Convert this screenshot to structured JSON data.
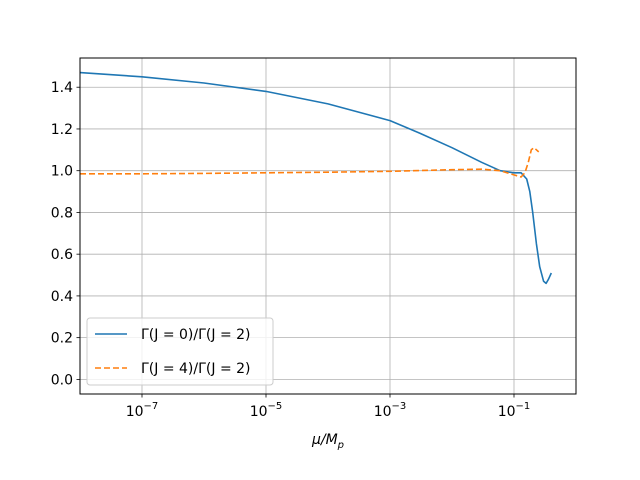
{
  "chart_data": {
    "type": "line",
    "title": "",
    "xlabel": "μ/M",
    "xlabel_sub": "p",
    "ylabel": "",
    "xscale": "log",
    "xlim": [
      1e-08,
      1.0
    ],
    "ylim": [
      -0.07,
      1.54
    ],
    "grid": true,
    "legend_position": "lower-left",
    "x_ticks": [
      {
        "value": 1e-07,
        "base": "10",
        "exp": "−7"
      },
      {
        "value": 1e-05,
        "base": "10",
        "exp": "−5"
      },
      {
        "value": 0.001,
        "base": "10",
        "exp": "−3"
      },
      {
        "value": 0.1,
        "base": "10",
        "exp": "−1"
      }
    ],
    "y_ticks": [
      {
        "value": 0.0,
        "label": "0.0"
      },
      {
        "value": 0.2,
        "label": "0.2"
      },
      {
        "value": 0.4,
        "label": "0.4"
      },
      {
        "value": 0.6,
        "label": "0.6"
      },
      {
        "value": 0.8,
        "label": "0.8"
      },
      {
        "value": 1.0,
        "label": "1.0"
      },
      {
        "value": 1.2,
        "label": "1.2"
      },
      {
        "value": 1.4,
        "label": "1.4"
      }
    ],
    "series": [
      {
        "name": "Γ(J = 0)/Γ(J = 2)",
        "color": "#1f77b4",
        "style": "solid",
        "x": [
          1e-08,
          1e-07,
          1e-06,
          1e-05,
          0.0001,
          0.001,
          0.003,
          0.01,
          0.03,
          0.06,
          0.1,
          0.13,
          0.16,
          0.18,
          0.2,
          0.23,
          0.26,
          0.3,
          0.33,
          0.36,
          0.4
        ],
        "y": [
          1.47,
          1.45,
          1.42,
          1.38,
          1.32,
          1.24,
          1.18,
          1.11,
          1.04,
          1.0,
          0.99,
          0.99,
          0.96,
          0.9,
          0.8,
          0.65,
          0.54,
          0.47,
          0.46,
          0.48,
          0.51
        ]
      },
      {
        "name": "Γ(J = 4)/Γ(J = 2)",
        "color": "#ff7f0e",
        "style": "dashed",
        "x": [
          1e-08,
          1e-07,
          1e-06,
          1e-05,
          0.0001,
          0.001,
          0.01,
          0.03,
          0.06,
          0.1,
          0.13,
          0.15,
          0.17,
          0.19,
          0.21,
          0.23,
          0.25
        ],
        "y": [
          0.985,
          0.985,
          0.987,
          0.99,
          0.993,
          0.997,
          1.005,
          1.007,
          1.0,
          0.98,
          0.97,
          0.99,
          1.04,
          1.1,
          1.11,
          1.1,
          1.09
        ]
      }
    ]
  }
}
